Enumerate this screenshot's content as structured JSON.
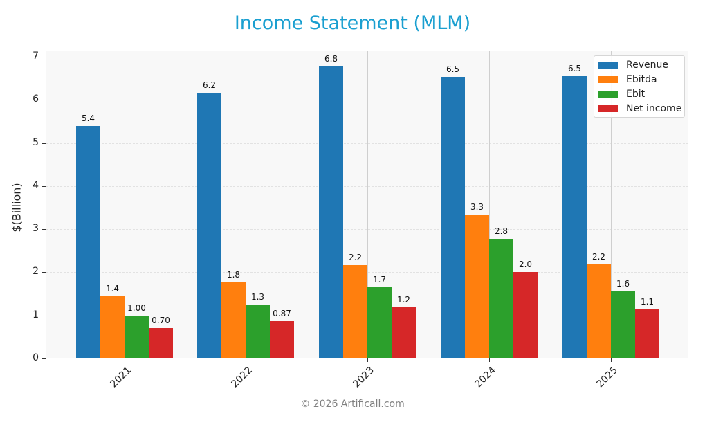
{
  "header": {
    "title": "Income Statement (MLM)"
  },
  "footer": {
    "copyright": "© 2026 Artificall.com"
  },
  "colors": {
    "title": "#1a9fd0",
    "Revenue": "#1f77b4",
    "Ebitda": "#ff7f0e",
    "Ebit": "#2ca02c",
    "Net income": "#d62728"
  },
  "axis": {
    "ylabel": "$(Billion)",
    "yticks": [
      "0",
      "1",
      "2",
      "3",
      "4",
      "5",
      "6",
      "7"
    ],
    "xticks": [
      "2021",
      "2022",
      "2023",
      "2024",
      "2025"
    ]
  },
  "legend": {
    "items": [
      "Revenue",
      "Ebitda",
      "Ebit",
      "Net income"
    ]
  },
  "labels": {
    "2021": [
      "5.4",
      "1.4",
      "1.00",
      "0.70"
    ],
    "2022": [
      "6.2",
      "1.8",
      "1.3",
      "0.87"
    ],
    "2023": [
      "6.8",
      "2.2",
      "1.7",
      "1.2"
    ],
    "2024": [
      "6.5",
      "3.3",
      "2.8",
      "2.0"
    ],
    "2025": [
      "6.5",
      "2.2",
      "1.6",
      "1.1"
    ]
  },
  "chart_data": {
    "type": "bar",
    "title": "Income Statement (MLM)",
    "xlabel": "",
    "ylabel": "$(Billion)",
    "ylim": [
      0,
      7
    ],
    "categories": [
      "2021",
      "2022",
      "2023",
      "2024",
      "2025"
    ],
    "series": [
      {
        "name": "Revenue",
        "color": "#1f77b4",
        "values": [
          5.4,
          6.16,
          6.78,
          6.54,
          6.55
        ]
      },
      {
        "name": "Ebitda",
        "color": "#ff7f0e",
        "values": [
          1.44,
          1.77,
          2.17,
          3.34,
          2.19
        ]
      },
      {
        "name": "Ebit",
        "color": "#2ca02c",
        "values": [
          1.0,
          1.26,
          1.66,
          2.77,
          1.56
        ]
      },
      {
        "name": "Net income",
        "color": "#d62728",
        "values": [
          0.7,
          0.87,
          1.18,
          2.0,
          1.14
        ]
      }
    ],
    "data_labels": [
      [
        "5.4",
        "1.4",
        "1.00",
        "0.70"
      ],
      [
        "6.2",
        "1.8",
        "1.3",
        "0.87"
      ],
      [
        "6.8",
        "2.2",
        "1.7",
        "1.2"
      ],
      [
        "6.5",
        "3.3",
        "2.8",
        "2.0"
      ],
      [
        "6.5",
        "2.2",
        "1.6",
        "1.1"
      ]
    ],
    "legend_position": "upper right",
    "grid": true
  }
}
